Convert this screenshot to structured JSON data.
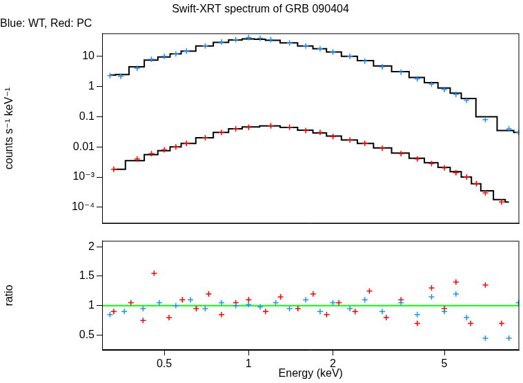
{
  "chart_data": [
    {
      "type": "scatter",
      "title": "Swift-XRT spectrum of GRB 090404",
      "subtitle": "Blue: WT, Red: PC",
      "y_label": "counts s⁻¹ keV⁻¹",
      "log": true,
      "tick_labels": "y",
      "xlim": [
        0.3,
        9.25
      ],
      "xticks": [
        0.5,
        1,
        2,
        5
      ],
      "ylim": [
        2.9e-05,
        58
      ],
      "yticks": [
        {
          "value": 0.0001,
          "label": "10⁻⁴"
        },
        {
          "value": 0.001,
          "label": "10⁻³"
        },
        0.01,
        0.1,
        1,
        10
      ],
      "series": [
        {
          "type": "scatter",
          "marker": "cross",
          "color": "#1e90ff",
          "x": [
            0.32,
            0.35,
            0.4,
            0.45,
            0.5,
            0.55,
            0.6,
            0.7,
            0.8,
            0.9,
            1.0,
            1.1,
            1.2,
            1.4,
            1.6,
            1.8,
            2.0,
            2.3,
            2.6,
            3.0,
            3.5,
            4.0,
            4.5,
            5.0,
            5.5,
            6.0,
            7.0,
            8.5,
            9.2
          ],
          "values": [
            2.3,
            2.2,
            4,
            8,
            10,
            12,
            15,
            22,
            30,
            36,
            42,
            40,
            36,
            28,
            22,
            18,
            14,
            10,
            7,
            4.5,
            3,
            1.8,
            1.2,
            0.8,
            0.55,
            0.35,
            0.08,
            0.04,
            0.03
          ]
        },
        {
          "type": "line",
          "line_style": "steps",
          "color": "#000000",
          "x": [
            0.32,
            0.35,
            0.4,
            0.45,
            0.5,
            0.55,
            0.6,
            0.7,
            0.8,
            0.9,
            1.0,
            1.1,
            1.2,
            1.4,
            1.6,
            1.8,
            2.0,
            2.3,
            2.6,
            3.0,
            3.5,
            4.0,
            4.5,
            5.0,
            5.5,
            6.0,
            7.0,
            8.5,
            9.2
          ],
          "values": [
            2.4,
            2.5,
            4.5,
            7.5,
            9.5,
            12,
            15,
            22,
            29,
            35,
            38,
            37,
            34,
            28,
            22,
            18,
            14,
            10,
            7.2,
            4.8,
            3.1,
            2.0,
            1.35,
            0.9,
            0.6,
            0.4,
            0.1,
            0.035,
            0.03
          ]
        },
        {
          "type": "scatter",
          "marker": "cross",
          "color": "#ff0000",
          "x": [
            0.33,
            0.4,
            0.45,
            0.5,
            0.55,
            0.6,
            0.7,
            0.8,
            0.9,
            1.0,
            1.2,
            1.4,
            1.6,
            1.8,
            2.0,
            2.3,
            2.6,
            3.0,
            3.5,
            4.0,
            4.5,
            5.0,
            5.5,
            6.0,
            6.5,
            7.0,
            8.0
          ],
          "values": [
            0.0018,
            0.004,
            0.006,
            0.008,
            0.01,
            0.013,
            0.02,
            0.03,
            0.04,
            0.045,
            0.05,
            0.045,
            0.035,
            0.03,
            0.022,
            0.017,
            0.013,
            0.009,
            0.006,
            0.004,
            0.0028,
            0.002,
            0.0014,
            0.001,
            0.0006,
            0.0003,
            0.00015
          ]
        },
        {
          "type": "line",
          "line_style": "steps",
          "color": "#000000",
          "x": [
            0.33,
            0.4,
            0.45,
            0.5,
            0.55,
            0.6,
            0.7,
            0.8,
            0.9,
            1.0,
            1.2,
            1.4,
            1.6,
            1.8,
            2.0,
            2.3,
            2.6,
            3.0,
            3.5,
            4.0,
            4.5,
            5.0,
            5.5,
            6.0,
            6.5,
            7.0,
            8.0,
            8.5
          ],
          "values": [
            0.0018,
            0.0035,
            0.0055,
            0.0075,
            0.01,
            0.013,
            0.02,
            0.03,
            0.04,
            0.046,
            0.05,
            0.044,
            0.036,
            0.029,
            0.023,
            0.017,
            0.013,
            0.0092,
            0.0062,
            0.0042,
            0.003,
            0.0021,
            0.0015,
            0.001,
            0.0006,
            0.00035,
            0.00018,
            0.00015
          ]
        }
      ]
    },
    {
      "type": "scatter",
      "x_label": "Energy (keV)",
      "y_label": "ratio",
      "log": "x",
      "xlim": [
        0.3,
        9.25
      ],
      "xticks": [
        0.5,
        1,
        2,
        5
      ],
      "ylim": [
        0.25,
        2.1
      ],
      "yticks": [
        0.5,
        1,
        1.5,
        2
      ],
      "series": [
        {
          "type": "scatter",
          "marker": "cross",
          "color": "#1e90ff",
          "x": [
            0.32,
            0.36,
            0.42,
            0.48,
            0.55,
            0.62,
            0.7,
            0.8,
            0.9,
            1.0,
            1.1,
            1.25,
            1.4,
            1.6,
            1.8,
            2.0,
            2.3,
            2.6,
            3.0,
            3.5,
            4.0,
            4.5,
            5.0,
            5.5,
            6.0,
            7.0,
            8.5,
            9.2
          ],
          "values": [
            0.85,
            0.9,
            0.95,
            1.05,
            1.0,
            1.1,
            0.95,
            1.05,
            1.0,
            1.02,
            0.98,
            1.05,
            0.95,
            1.1,
            0.9,
            1.05,
            0.95,
            1.1,
            0.9,
            1.05,
            0.85,
            1.15,
            0.9,
            1.2,
            0.8,
            0.45,
            0.45,
            1.05
          ]
        },
        {
          "type": "scatter",
          "marker": "cross",
          "color": "#ff0000",
          "x": [
            0.33,
            0.38,
            0.42,
            0.46,
            0.52,
            0.58,
            0.65,
            0.72,
            0.8,
            0.9,
            1.0,
            1.15,
            1.3,
            1.5,
            1.7,
            1.9,
            2.1,
            2.4,
            2.7,
            3.1,
            3.5,
            4.0,
            4.5,
            5.0,
            5.5,
            6.2,
            7.0,
            8.0
          ],
          "values": [
            0.9,
            1.05,
            0.75,
            1.55,
            0.8,
            1.1,
            0.95,
            1.2,
            0.85,
            1.05,
            1.1,
            0.9,
            1.15,
            0.95,
            1.2,
            0.85,
            1.05,
            0.9,
            1.25,
            0.8,
            1.1,
            0.7,
            1.3,
            0.95,
            1.4,
            0.7,
            1.35,
            0.7
          ]
        },
        {
          "type": "line",
          "color": "#00ff00",
          "x": [
            0.3,
            9.25
          ],
          "values": [
            1,
            1
          ]
        }
      ]
    }
  ]
}
